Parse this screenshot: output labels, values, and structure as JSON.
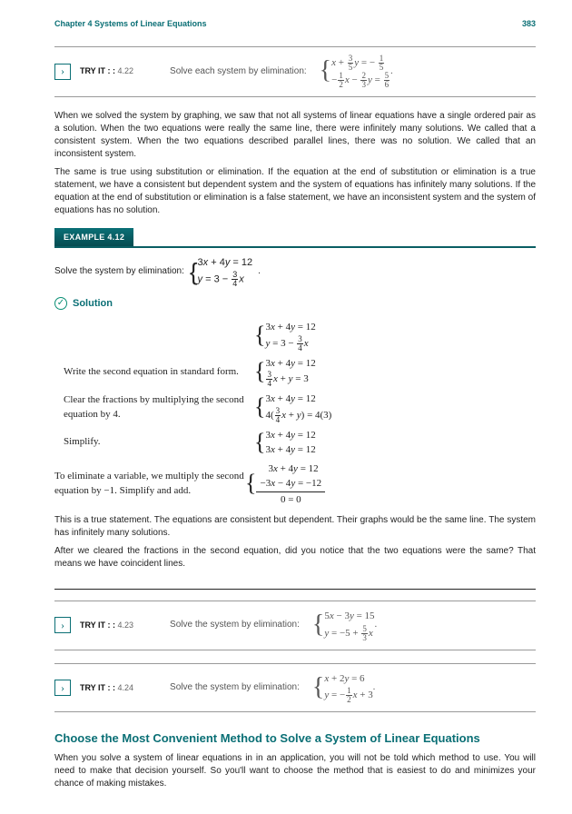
{
  "header": {
    "chapter": "Chapter 4 Systems of Linear Equations",
    "page": "383"
  },
  "tryit_422": {
    "label": "TRY IT : :",
    "num": "4.22",
    "text": "Solve each system by elimination:",
    "eq1_html": "<i>x</i> + <span class='frac'><span class='num'>3</span><span class='den'>5</span></span><i>y</i> = − <span class='frac'><span class='num'>1</span><span class='den'>5</span></span>",
    "eq2_html": "−<span class='frac'><span class='num'>1</span><span class='den'>2</span></span><i>x</i> − <span class='frac'><span class='num'>2</span><span class='den'>3</span></span><i>y</i> = <span class='frac'><span class='num'>5</span><span class='den'>6</span></span>"
  },
  "para1": "When we solved the system by graphing, we saw that not all systems of linear equations have a single ordered pair as a solution. When the two equations were really the same line, there were infinitely many solutions. We called that a consistent system. When the two equations described parallel lines, there was no solution. We called that an inconsistent system.",
  "para2": "The same is true using substitution or elimination. If the equation at the end of substitution or elimination is a true statement, we have a consistent but dependent system and the system of equations has infinitely many solutions. If the equation at the end of substitution or elimination is a false statement, we have an inconsistent system and the system of equations has no solution.",
  "example": {
    "tag": "EXAMPLE 4.12",
    "prompt": "Solve the system by elimination:",
    "sys_eq1": "3<i>x</i> + 4<i>y</i> = 12",
    "sys_eq2_html": "<i>y</i> = 3 − <span class='frac'><span class='num'>3</span><span class='den'>4</span></span><i>x</i>",
    "solution": "Solution",
    "steps": [
      {
        "text": "",
        "eq1": "3<i>x</i> + 4<i>y</i> = 12",
        "eq2": "<i>y</i> = 3 − <span class='frac'><span class='num'>3</span><span class='den'>4</span></span><i>x</i>"
      },
      {
        "text": "Write the second equation in standard form.",
        "eq1": "3<i>x</i> + 4<i>y</i> = 12",
        "eq2": "<span class='frac'><span class='num'>3</span><span class='den'>4</span></span><i>x</i> + <i>y</i> = 3"
      },
      {
        "text": "Clear the fractions by multiplying the second equation by 4.",
        "eq1": "3<i>x</i> + 4<i>y</i> = 12",
        "eq2": "4(<span class='frac'><span class='num'>3</span><span class='den'>4</span></span><i>x</i> + <i>y</i>) = 4(3)"
      },
      {
        "text": "Simplify.",
        "eq1": "3<i>x</i> + 4<i>y</i> = 12",
        "eq2": "3<i>x</i> + 4<i>y</i> = 12"
      }
    ],
    "step5_text": "To eliminate a variable, we multiply the second equation by −1. Simplify and add.",
    "step5_eq1": "  3<i>x</i> + 4<i>y</i> = 12",
    "step5_eq2": "−3<i>x</i> − 4<i>y</i> = −12",
    "step5_res": "0 = 0",
    "para_after1": "This is a true statement. The equations are consistent but dependent. Their graphs would be the same line. The system has infinitely many solutions.",
    "para_after2": "After we cleared the fractions in the second equation, did you notice that the two equations were the same? That means we have coincident lines."
  },
  "tryit_423": {
    "label": "TRY IT : :",
    "num": "4.23",
    "text": "Solve the system by elimination:",
    "eq1_html": "5<i>x</i> − 3<i>y</i> = 15",
    "eq2_html": "<i>y</i> = −5 + <span class='frac'><span class='num'>5</span><span class='den'>3</span></span><i>x</i>"
  },
  "tryit_424": {
    "label": "TRY IT : :",
    "num": "4.24",
    "text": "Solve the system by elimination:",
    "eq1_html": "<i>x</i> + 2<i>y</i> = 6",
    "eq2_html": "<i>y</i> = −<span class='frac'><span class='num'>1</span><span class='den'>2</span></span><i>x</i> + 3"
  },
  "section": {
    "title": "Choose the Most Convenient Method to Solve a System of Linear Equations",
    "para": "When you solve a system of linear equations in in an application, you will not be told which method to use. You will need to make that decision yourself. So you'll want to choose the method that is easiest to do and minimizes your chance of making mistakes."
  }
}
